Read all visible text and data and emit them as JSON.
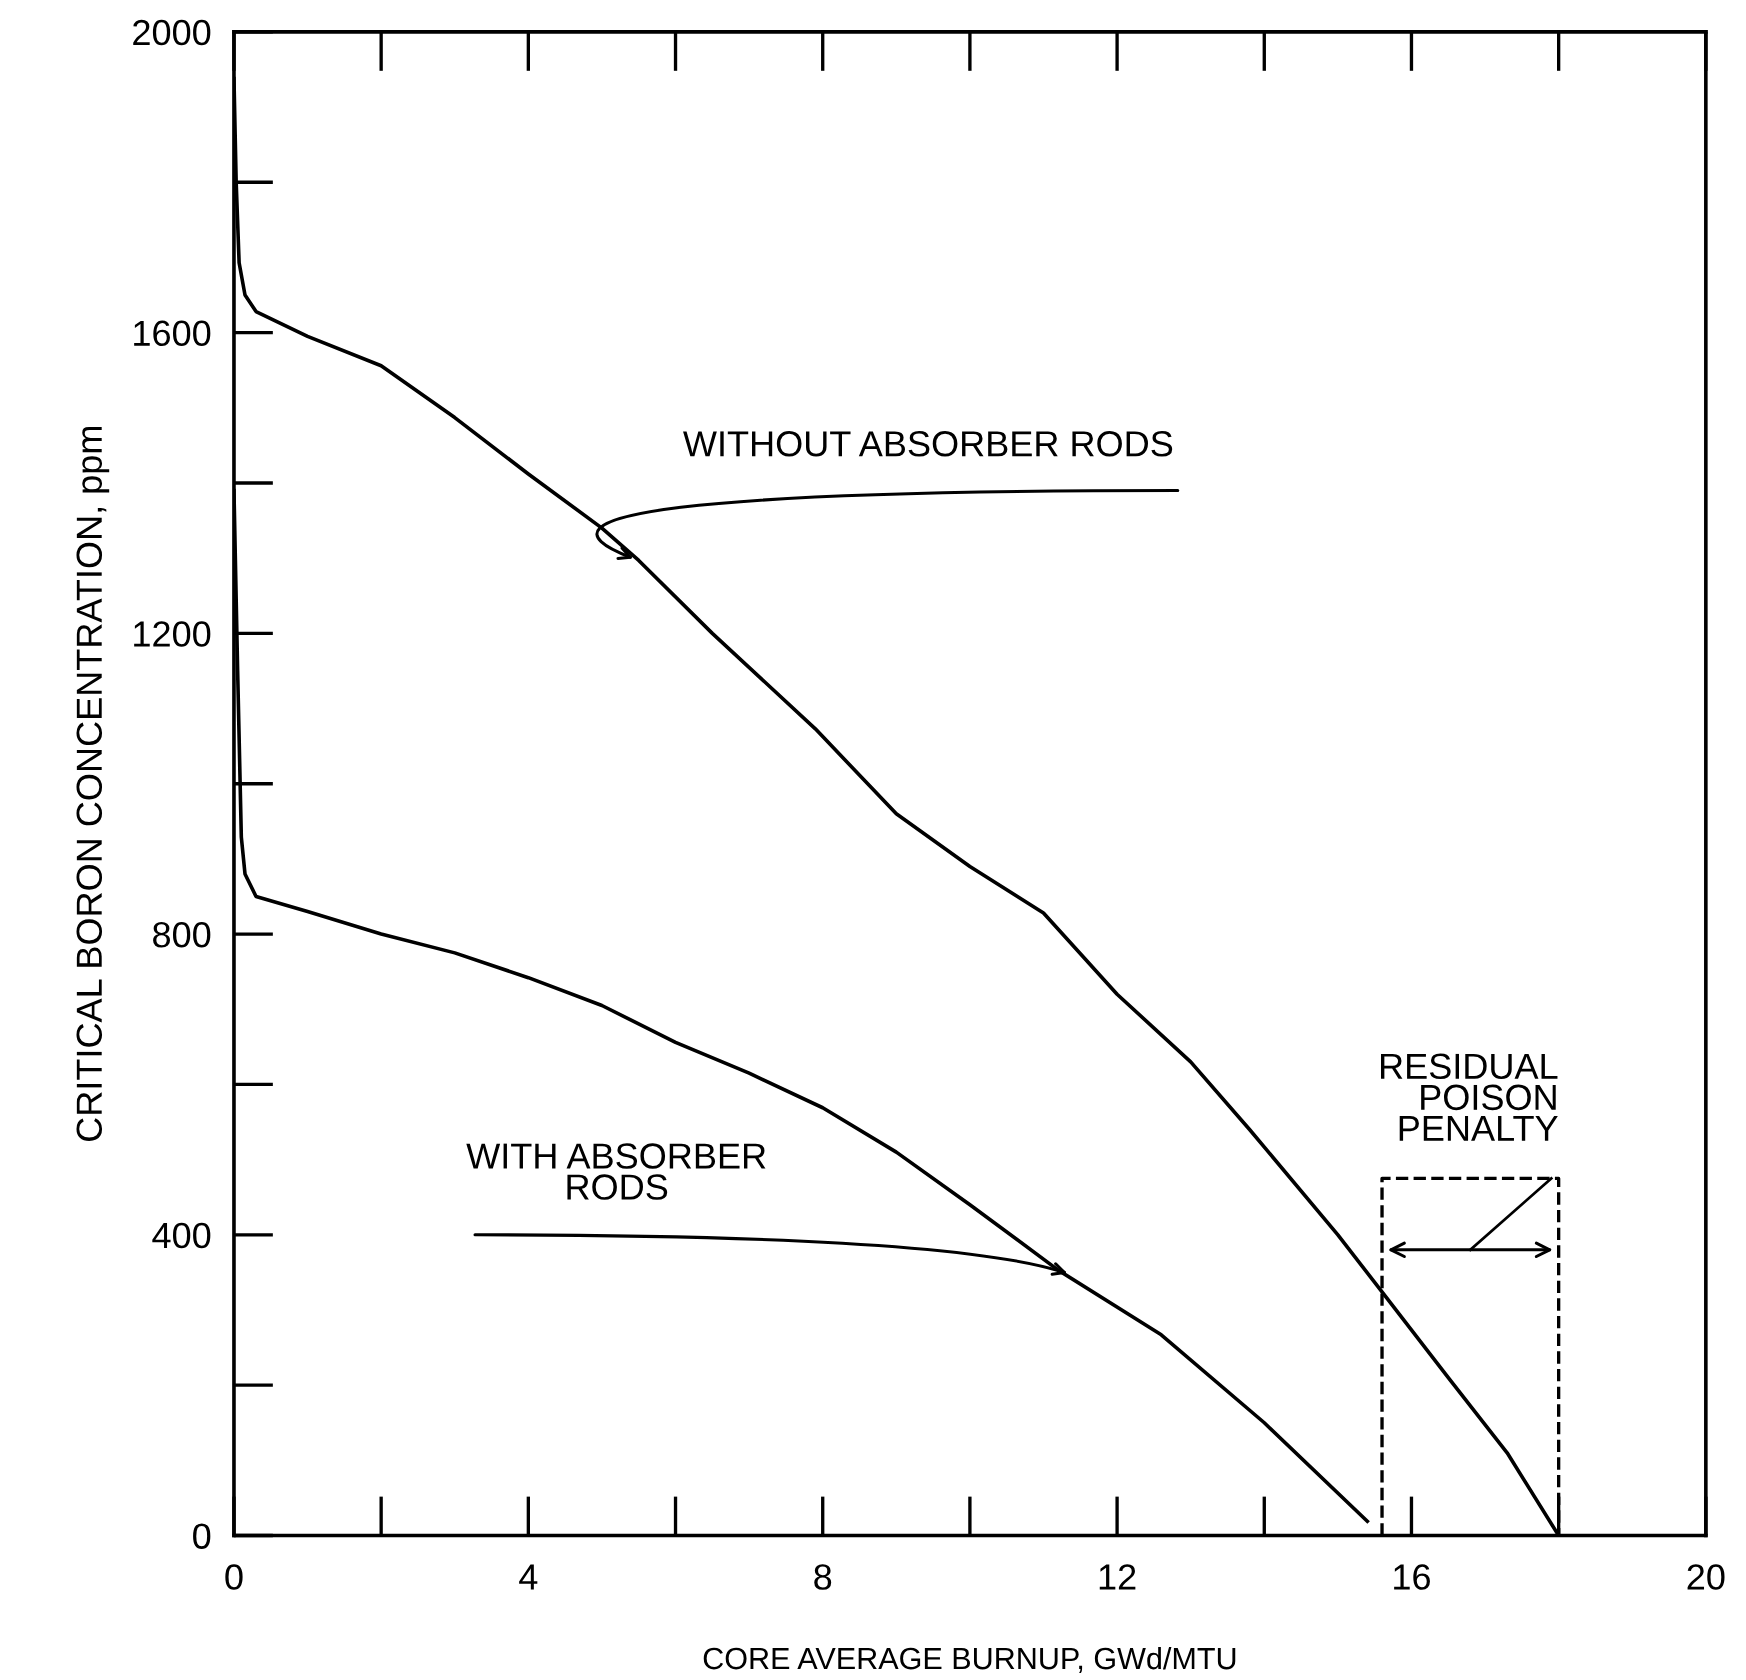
{
  "chart_data": {
    "type": "line",
    "xlabel": "CORE AVERAGE BURNUP, GWd/MTU",
    "ylabel": "CRITICAL BORON CONCENTRATION, ppm",
    "series": [
      {
        "color": "#000000",
        "x": [
          0,
          0.03,
          0.07,
          0.15,
          0.3,
          1,
          2,
          3,
          4,
          5,
          5.5,
          6.5,
          7.9,
          9,
          10,
          11,
          12,
          13,
          13.8,
          15,
          15.6,
          16.5,
          17.3,
          18
        ],
        "values": [
          1938,
          1800,
          1693,
          1650,
          1628,
          1595,
          1556,
          1487,
          1412,
          1340,
          1297,
          1200,
          1073,
          960,
          890,
          828,
          720,
          630,
          540,
          400,
          324,
          210,
          110,
          0
        ]
      },
      {
        "color": "#000000",
        "x": [
          0,
          0.05,
          0.1,
          0.15,
          0.3,
          1,
          2,
          3,
          4,
          5,
          6,
          7,
          8,
          9,
          10,
          11.2,
          12.6,
          14,
          15.4
        ],
        "values": [
          1390,
          1150,
          929,
          880,
          850,
          830,
          800,
          775,
          742,
          705,
          656,
          615,
          569,
          510,
          440,
          353,
          267,
          150,
          19
        ]
      }
    ],
    "annotations": [
      {
        "text": "WITHOUT ABSORBER RODS",
        "x": 5.5,
        "y": 1297
      },
      {
        "text": "WITH ABSORBER\nRODS",
        "x": 11.4,
        "y": 346
      },
      "RESIDUAL\nPOISON\nPENALTY"
    ],
    "xlim": [
      0,
      20
    ],
    "xticks": [
      0,
      4,
      8,
      12,
      16,
      20
    ],
    "ylim": [
      0,
      2000
    ],
    "yticks": [
      0,
      400,
      800,
      1200,
      1600,
      2000
    ],
    "grid": false,
    "legend": false,
    "marker": "none",
    "line_style": "solid"
  }
}
